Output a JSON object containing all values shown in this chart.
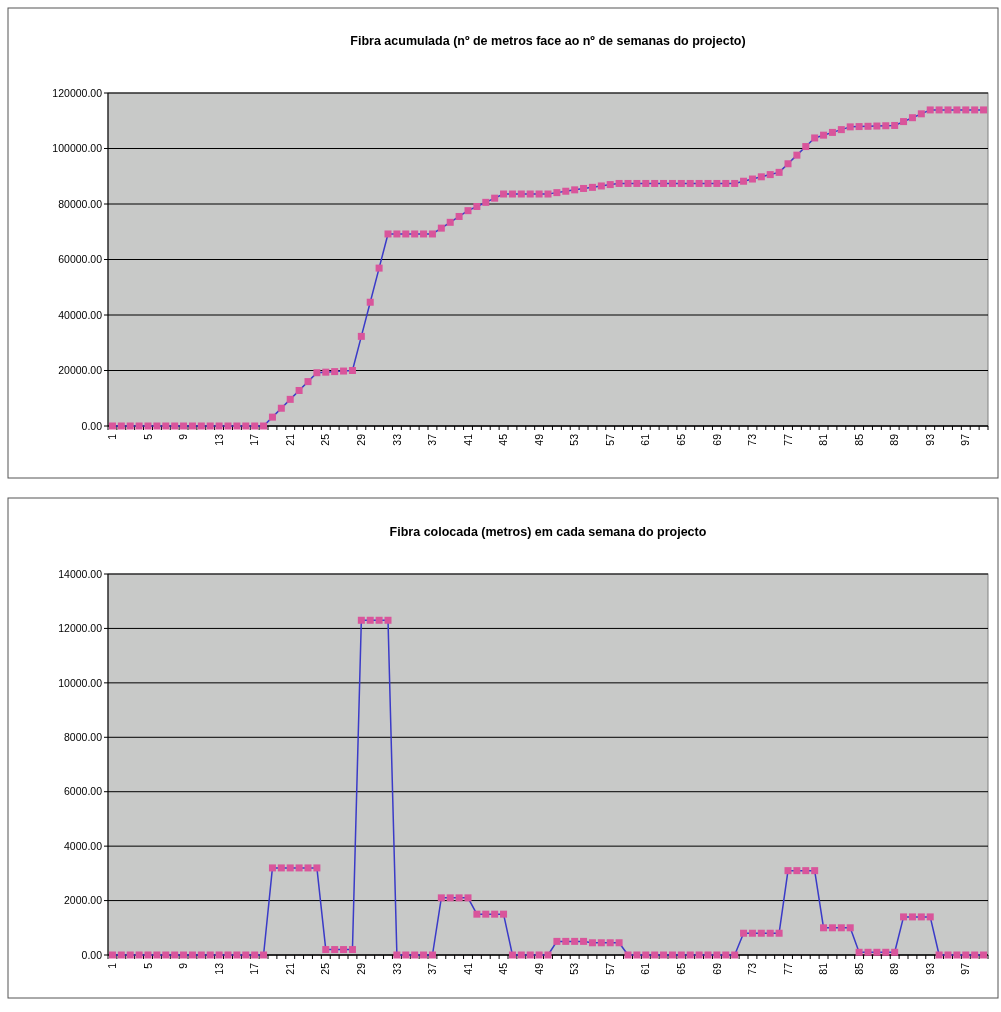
{
  "chart_data": [
    {
      "type": "line",
      "title": "Fibra acumulada (nº de metros face ao nº de semanas do projecto)",
      "categories": [
        "1",
        null,
        null,
        null,
        "5",
        null,
        null,
        null,
        "9",
        null,
        null,
        null,
        "13",
        null,
        null,
        null,
        "17",
        null,
        null,
        null,
        "21",
        null,
        null,
        null,
        "25",
        null,
        null,
        null,
        "29",
        null,
        null,
        null,
        "33",
        null,
        null,
        null,
        "37",
        null,
        null,
        null,
        "41",
        null,
        null,
        null,
        "45",
        null,
        null,
        null,
        "49",
        null,
        null,
        null,
        "53",
        null,
        null,
        null,
        "57",
        null,
        null,
        null,
        "61",
        null,
        null,
        null,
        "65",
        null,
        null,
        null,
        "69",
        null,
        null,
        null,
        "73",
        null,
        null,
        null,
        "77",
        null,
        null,
        null,
        "81",
        null,
        null,
        null,
        "85",
        null,
        null,
        null,
        "89",
        null,
        null,
        null,
        "93",
        null,
        null,
        null,
        "97",
        null,
        null
      ],
      "series": [
        {
          "color": "#3a3ac8",
          "colors": [
            "#d9559b",
            "#d9559b",
            "#d9559b",
            "#d9559b",
            "#d9559b",
            "#d9559b",
            "#d9559b",
            "#d9559b",
            "#d9559b",
            "#d9559b",
            "#d9559b",
            "#d9559b",
            "#d9559b",
            "#d9559b",
            "#d9559b",
            "#d9559b",
            "#d9559b",
            "#d9559b",
            "#d9559b",
            "#d9559b",
            "#d9559b",
            "#d9559b",
            "#d9559b",
            "#d9559b",
            "#d9559b",
            "#d9559b",
            "#d9559b",
            "#d9559b",
            "#d9559b",
            "#d9559b",
            "#d9559b",
            "#d9559b",
            "#d9559b",
            "#d9559b",
            "#d9559b",
            "#d9559b",
            "#d9559b",
            "#d9559b",
            "#d9559b",
            "#d9559b",
            "#d9559b",
            "#d9559b",
            "#d9559b",
            "#d9559b",
            "#d9559b",
            "#d9559b",
            "#d9559b",
            "#d9559b",
            "#d9559b",
            "#d9559b",
            "#d9559b",
            "#d9559b",
            "#d9559b",
            "#d9559b",
            "#d9559b",
            "#d9559b",
            "#d9559b",
            "#d9559b",
            "#d9559b",
            "#d9559b",
            "#d9559b",
            "#d9559b",
            "#d9559b",
            "#d9559b",
            "#d9559b",
            "#d9559b",
            "#d9559b",
            "#d9559b",
            "#d9559b",
            "#d9559b",
            "#d9559b",
            "#d9559b",
            "#d9559b",
            "#d9559b",
            "#d9559b",
            "#d9559b",
            "#d9559b",
            "#d9559b",
            "#d9559b",
            "#d9559b",
            "#d9559b",
            "#d9559b",
            "#d9559b",
            "#d9559b",
            "#d9559b",
            "#d9559b",
            "#d9559b",
            "#d9559b",
            "#d9559b",
            "#d9559b",
            "#d9559b",
            "#d9559b",
            "#d9559b",
            "#d9559b",
            "#d9559b",
            "#d9559b",
            "#d9559b",
            "#d9559b",
            "#d9559b"
          ],
          "values": [
            0,
            0,
            0,
            0,
            0,
            0,
            0,
            0,
            0,
            0,
            0,
            0,
            0,
            0,
            0,
            0,
            0,
            0,
            3200,
            6400,
            9600,
            12800,
            16000,
            19200,
            19400,
            19600,
            19800,
            20000,
            32300,
            44600,
            56900,
            69200,
            69200,
            69200,
            69200,
            69200,
            69200,
            71300,
            73400,
            75500,
            77600,
            79100,
            80600,
            82100,
            83600,
            83600,
            83600,
            83600,
            83600,
            83600,
            84100,
            84600,
            85100,
            85600,
            86000,
            86500,
            87000,
            87400,
            87400,
            87400,
            87400,
            87400,
            87400,
            87400,
            87400,
            87400,
            87400,
            87400,
            87400,
            87400,
            87400,
            88200,
            89000,
            89800,
            90600,
            91400,
            94500,
            97600,
            100700,
            103800,
            104800,
            105800,
            106800,
            107800,
            107900,
            108000,
            108100,
            108200,
            108300,
            109700,
            111100,
            112500,
            113900,
            113900,
            113900,
            113900,
            113900,
            113900,
            113900
          ]
        }
      ],
      "ylim": [
        0,
        120000
      ],
      "yticks": [
        {
          "value": 0,
          "label": "0.00"
        },
        {
          "value": 20000,
          "label": "20000.00"
        },
        {
          "value": 40000,
          "label": "40000.00"
        },
        {
          "value": 60000,
          "label": "60000.00"
        },
        {
          "value": 80000,
          "label": "80000.00"
        },
        {
          "value": 100000,
          "label": "100000.00"
        },
        {
          "value": 120000,
          "label": "120000.00"
        }
      ],
      "grid": "y",
      "marker": "square"
    },
    {
      "type": "line",
      "title": "Fibra colocada (metros) em cada semana do projecto",
      "categories": [
        "1",
        null,
        null,
        null,
        "5",
        null,
        null,
        null,
        "9",
        null,
        null,
        null,
        "13",
        null,
        null,
        null,
        "17",
        null,
        null,
        null,
        "21",
        null,
        null,
        null,
        "25",
        null,
        null,
        null,
        "29",
        null,
        null,
        null,
        "33",
        null,
        null,
        null,
        "37",
        null,
        null,
        null,
        "41",
        null,
        null,
        null,
        "45",
        null,
        null,
        null,
        "49",
        null,
        null,
        null,
        "53",
        null,
        null,
        null,
        "57",
        null,
        null,
        null,
        "61",
        null,
        null,
        null,
        "65",
        null,
        null,
        null,
        "69",
        null,
        null,
        null,
        "73",
        null,
        null,
        null,
        "77",
        null,
        null,
        null,
        "81",
        null,
        null,
        null,
        "85",
        null,
        null,
        null,
        "89",
        null,
        null,
        null,
        "93",
        null,
        null,
        null,
        "97",
        null,
        null
      ],
      "series": [
        {
          "color": "#3a3ac8",
          "colors": [
            "#d9559b",
            "#d9559b",
            "#d9559b",
            "#d9559b",
            "#d9559b",
            "#d9559b",
            "#d9559b",
            "#d9559b",
            "#d9559b",
            "#d9559b",
            "#d9559b",
            "#d9559b",
            "#d9559b",
            "#d9559b",
            "#d9559b",
            "#d9559b",
            "#d9559b",
            "#d9559b",
            "#d9559b",
            "#d9559b",
            "#d9559b",
            "#d9559b",
            "#d9559b",
            "#d9559b",
            "#d9559b",
            "#d9559b",
            "#d9559b",
            "#d9559b",
            "#d9559b",
            "#d9559b",
            "#d9559b",
            "#d9559b",
            "#d9559b",
            "#d9559b",
            "#d9559b",
            "#d9559b",
            "#d9559b",
            "#d9559b",
            "#d9559b",
            "#d9559b",
            "#d9559b",
            "#d9559b",
            "#d9559b",
            "#d9559b",
            "#d9559b",
            "#d9559b",
            "#d9559b",
            "#d9559b",
            "#d9559b",
            "#d9559b",
            "#d9559b",
            "#d9559b",
            "#d9559b",
            "#d9559b",
            "#d9559b",
            "#d9559b",
            "#d9559b",
            "#d9559b",
            "#d9559b",
            "#d9559b",
            "#d9559b",
            "#d9559b",
            "#d9559b",
            "#d9559b",
            "#d9559b",
            "#d9559b",
            "#d9559b",
            "#d9559b",
            "#d9559b",
            "#d9559b",
            "#d9559b",
            "#d9559b",
            "#d9559b",
            "#d9559b",
            "#d9559b",
            "#d9559b",
            "#d9559b",
            "#d9559b",
            "#d9559b",
            "#d9559b",
            "#d9559b",
            "#d9559b",
            "#d9559b",
            "#d9559b",
            "#d9559b",
            "#d9559b",
            "#d9559b",
            "#d9559b",
            "#d9559b",
            "#d9559b",
            "#d9559b",
            "#d9559b",
            "#d9559b",
            "#d9559b",
            "#d9559b",
            "#d9559b",
            "#d9559b",
            "#d9559b",
            "#d9559b"
          ],
          "values": [
            0,
            0,
            0,
            0,
            0,
            0,
            0,
            0,
            0,
            0,
            0,
            0,
            0,
            0,
            0,
            0,
            0,
            0,
            3200,
            3200,
            3200,
            3200,
            3200,
            3200,
            200,
            200,
            200,
            200,
            12300,
            12300,
            12300,
            12300,
            0,
            0,
            0,
            0,
            0,
            2100,
            2100,
            2100,
            2100,
            1500,
            1500,
            1500,
            1500,
            0,
            0,
            0,
            0,
            0,
            500,
            500,
            500,
            500,
            450,
            450,
            450,
            450,
            0,
            0,
            0,
            0,
            0,
            0,
            0,
            0,
            0,
            0,
            0,
            0,
            0,
            800,
            800,
            800,
            800,
            800,
            3100,
            3100,
            3100,
            3100,
            1000,
            1000,
            1000,
            1000,
            100,
            100,
            100,
            100,
            100,
            1400,
            1400,
            1400,
            1400,
            0,
            0,
            0,
            0,
            0,
            0
          ]
        }
      ],
      "ylim": [
        0,
        14000
      ],
      "yticks": [
        {
          "value": 0,
          "label": "0.00"
        },
        {
          "value": 2000,
          "label": "2000.00"
        },
        {
          "value": 4000,
          "label": "4000.00"
        },
        {
          "value": 6000,
          "label": "6000.00"
        },
        {
          "value": 8000,
          "label": "8000.00"
        },
        {
          "value": 10000,
          "label": "10000.00"
        },
        {
          "value": 12000,
          "label": "12000.00"
        },
        {
          "value": 14000,
          "label": "14000.00"
        }
      ],
      "grid": "y",
      "marker": "square"
    }
  ]
}
